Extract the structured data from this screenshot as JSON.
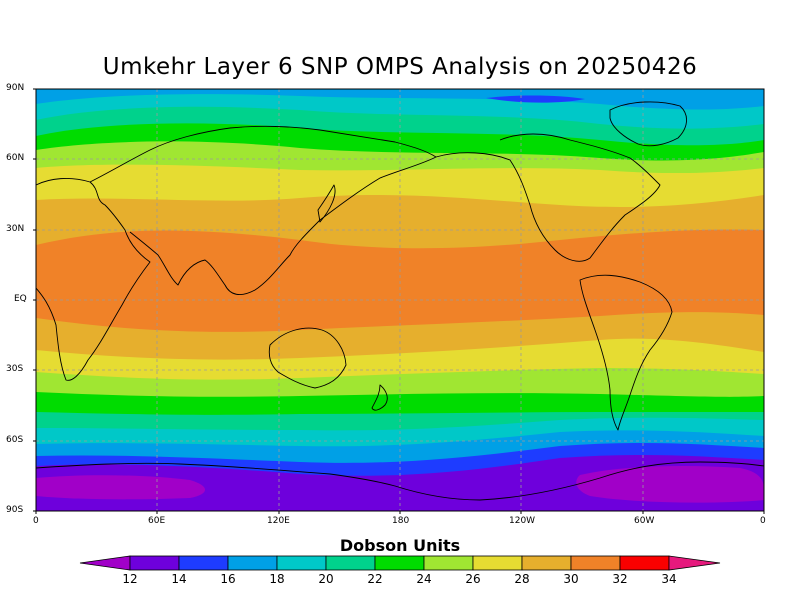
{
  "title": "Umkehr Layer 6 SNP OMPS Analysis on 20250426",
  "colorbar": {
    "title": "Dobson Units",
    "ticks": [
      "12",
      "14",
      "16",
      "18",
      "20",
      "22",
      "24",
      "26",
      "28",
      "30",
      "32",
      "34"
    ],
    "colors": [
      "#a100c8",
      "#6e00dc",
      "#1e3cff",
      "#00a0e6",
      "#00c8c8",
      "#00d28c",
      "#00dc00",
      "#a0e632",
      "#e6dc32",
      "#e6af2d",
      "#f08228",
      "#fa0000",
      "#e6197d"
    ]
  },
  "map": {
    "y_axis_labels": [
      "90N",
      "60N",
      "30N",
      "EQ",
      "30S",
      "60S",
      "90S"
    ],
    "x_axis_labels": [
      "0",
      "60E",
      "120E",
      "180",
      "120W",
      "60W",
      "0"
    ],
    "gridlines": "dashed",
    "projection": "cylindrical equidistant"
  }
}
